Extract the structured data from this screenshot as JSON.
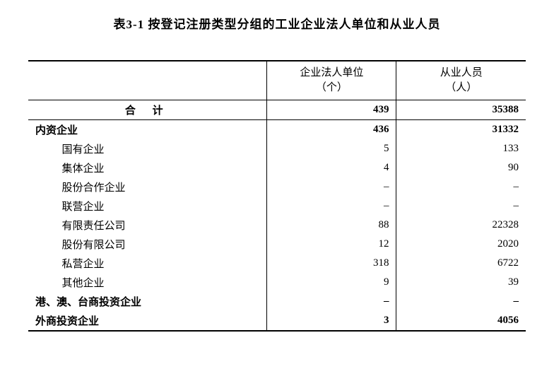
{
  "title": "表3-1   按登记注册类型分组的工业企业法人单位和从业人员",
  "header": {
    "col1": "",
    "col2_line1": "企业法人单位",
    "col2_line2": "（个）",
    "col3_line1": "从业人员",
    "col3_line2": "（人）"
  },
  "total_row": {
    "label": "合 计",
    "units": "439",
    "employees": "35388"
  },
  "rows": [
    {
      "label": "内资企业",
      "units": "436",
      "employees": "31332",
      "bold": true,
      "indent": 0
    },
    {
      "label": "国有企业",
      "units": "5",
      "employees": "133",
      "bold": false,
      "indent": 1
    },
    {
      "label": "集体企业",
      "units": "4",
      "employees": "90",
      "bold": false,
      "indent": 1
    },
    {
      "label": "股份合作企业",
      "units": "–",
      "employees": "–",
      "bold": false,
      "indent": 1
    },
    {
      "label": "联营企业",
      "units": "–",
      "employees": "–",
      "bold": false,
      "indent": 1
    },
    {
      "label": "有限责任公司",
      "units": "88",
      "employees": "22328",
      "bold": false,
      "indent": 1
    },
    {
      "label": "股份有限公司",
      "units": "12",
      "employees": "2020",
      "bold": false,
      "indent": 1
    },
    {
      "label": "私营企业",
      "units": "318",
      "employees": "6722",
      "bold": false,
      "indent": 1
    },
    {
      "label": "其他企业",
      "units": "9",
      "employees": "39",
      "bold": false,
      "indent": 1
    },
    {
      "label": "港、澳、台商投资企业",
      "units": "–",
      "employees": "–",
      "bold": true,
      "indent": 0
    },
    {
      "label": "外商投资企业",
      "units": "3",
      "employees": "4056",
      "bold": true,
      "indent": 0
    }
  ],
  "colors": {
    "text": "#000000",
    "background": "#ffffff",
    "border": "#000000"
  },
  "column_widths": {
    "label_pct": 48,
    "col2_pct": 26,
    "col3_pct": 26
  }
}
